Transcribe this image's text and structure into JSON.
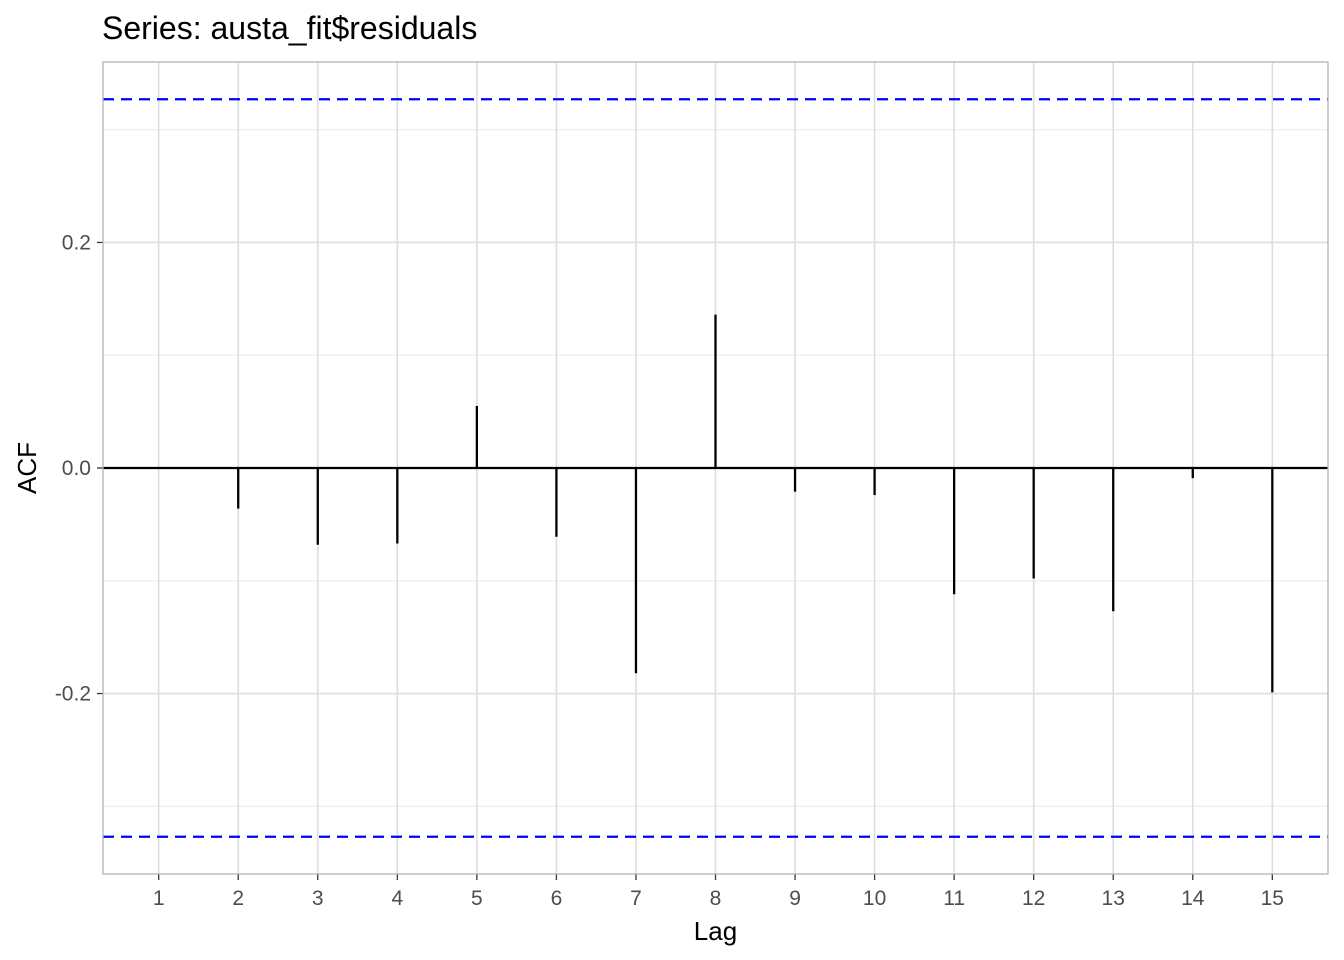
{
  "chart_data": {
    "type": "bar",
    "title": "Series: austa_fit$residuals",
    "xlabel": "Lag",
    "ylabel": "ACF",
    "x": [
      1,
      2,
      3,
      4,
      5,
      6,
      7,
      8,
      9,
      10,
      11,
      12,
      13,
      14,
      15
    ],
    "values": [
      0.0,
      -0.036,
      -0.068,
      -0.067,
      0.055,
      -0.061,
      -0.182,
      0.136,
      -0.021,
      -0.024,
      -0.112,
      -0.098,
      -0.127,
      -0.009,
      -0.199
    ],
    "xlim": [
      0.3,
      15.7
    ],
    "ylim": [
      -0.36,
      0.36
    ],
    "yticks": [
      -0.2,
      0.0,
      0.2
    ],
    "yticks_minor": [
      -0.3,
      -0.1,
      0.1,
      0.3
    ],
    "yticks_labels": [
      "-0.2",
      "0.0",
      "0.2"
    ],
    "confidence_bounds": [
      0.327,
      -0.327
    ],
    "grid": true,
    "legend": "none",
    "colors": {
      "bars": "#000000",
      "confidence_bounds": "#0000ff",
      "grid": "#ebebeb",
      "panel_border": "#b3b3b3"
    }
  }
}
